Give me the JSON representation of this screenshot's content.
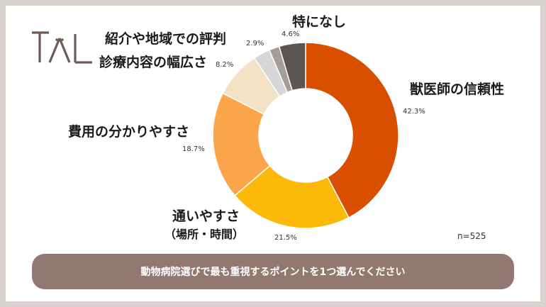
{
  "brand": {
    "logo_text": "TAL"
  },
  "chart_data": {
    "type": "pie",
    "categories": [
      "獣医師の信頼性",
      "通いやすさ（場所・時間）",
      "費用の分かりやすさ",
      "診療内容の幅広さ",
      "紹介や地域での評判",
      "",
      "特になし"
    ],
    "values": [
      42.3,
      21.5,
      18.7,
      8.2,
      2.9,
      1.8,
      4.6
    ],
    "colors": [
      "#d94f00",
      "#fdb909",
      "#fda54a",
      "#f2e2c3",
      "#d6d6d6",
      "#a39f98",
      "#595654"
    ],
    "donut": true,
    "labels": {
      "vet_trust": "獣医師の信頼性",
      "access_line1": "通いやすさ",
      "access_line2": "（場所・時間）",
      "cost": "費用の分かりやすさ",
      "range": "診療内容の幅広さ",
      "reputation": "紹介や地域での評判",
      "none": "特になし"
    },
    "percent_labels": {
      "vet_trust": "42.3%",
      "access": "21.5%",
      "cost": "18.7%",
      "range": "8.2%",
      "reputation": "2.9%",
      "none": "4.6%"
    },
    "n_label": "n=525"
  },
  "banner": {
    "text": "動物病院選びで最も重視するポイントを1つ選んでください"
  }
}
